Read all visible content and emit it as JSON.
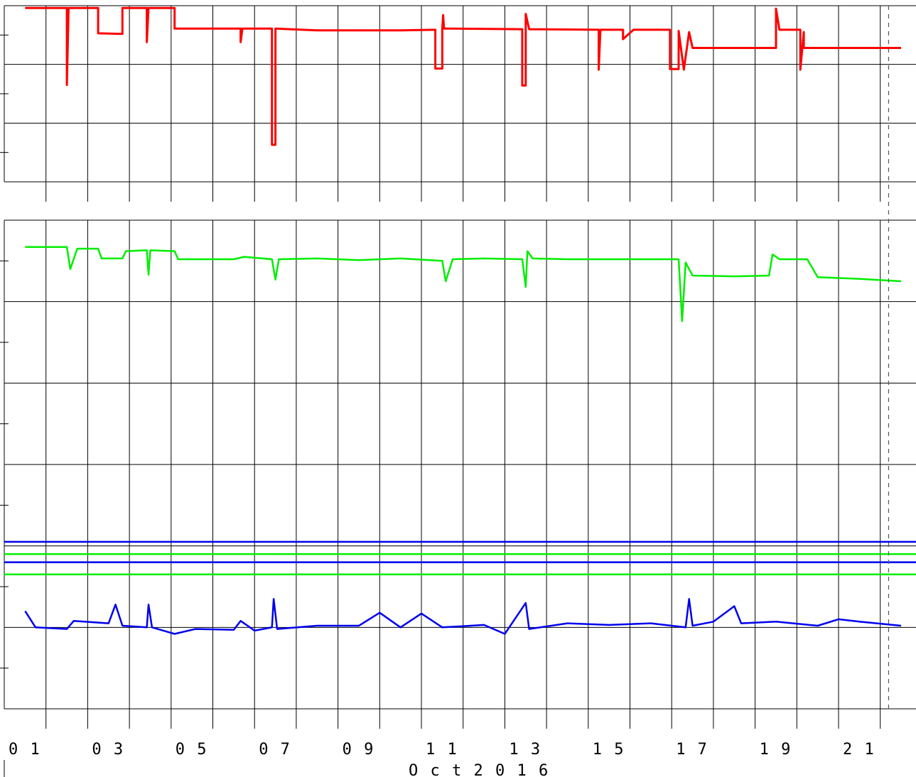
{
  "chart_data": [
    {
      "type": "line",
      "panel": "top",
      "x_range": [
        "2016-10-01",
        "2016-10-22"
      ],
      "y_range": [
        0,
        3
      ],
      "grid": true,
      "series": [
        {
          "color": "#ff0000",
          "points": [
            [
              "2016-10-01 12:00",
              2.96
            ],
            [
              "2016-10-02 12:00",
              2.96
            ],
            [
              "2016-10-02 12:00",
              1.65
            ],
            [
              "2016-10-02 13:00",
              2.96
            ],
            [
              "2016-10-03 06:00",
              2.96
            ],
            [
              "2016-10-03 06:00",
              2.53
            ],
            [
              "2016-10-03 20:00",
              2.52
            ],
            [
              "2016-10-03 20:00",
              2.96
            ],
            [
              "2016-10-04 10:00",
              2.96
            ],
            [
              "2016-10-04 10:00",
              2.38
            ],
            [
              "2016-10-04 11:00",
              2.96
            ],
            [
              "2016-10-05 02:00",
              2.96
            ],
            [
              "2016-10-05 02:00",
              2.61
            ],
            [
              "2016-10-06 16:00",
              2.61
            ],
            [
              "2016-10-06 16:00",
              2.38
            ],
            [
              "2016-10-06 17:00",
              2.61
            ],
            [
              "2016-10-07 10:00",
              2.61
            ],
            [
              "2016-10-07 10:00",
              0.63
            ],
            [
              "2016-10-07 12:00",
              0.63
            ],
            [
              "2016-10-07 12:00",
              2.61
            ],
            [
              "2016-10-08 12:00",
              2.58
            ],
            [
              "2016-10-09 12:00",
              2.58
            ],
            [
              "2016-10-10 12:00",
              2.58
            ],
            [
              "2016-10-11 08:00",
              2.59
            ],
            [
              "2016-10-11 08:00",
              1.93
            ],
            [
              "2016-10-11 12:00",
              1.93
            ],
            [
              "2016-10-11 12:00",
              2.61
            ],
            [
              "2016-10-11 12:30",
              2.84
            ],
            [
              "2016-10-11 13:00",
              2.61
            ],
            [
              "2016-10-13 10:00",
              2.6
            ],
            [
              "2016-10-13 10:00",
              1.64
            ],
            [
              "2016-10-13 12:00",
              1.64
            ],
            [
              "2016-10-13 12:00",
              2.86
            ],
            [
              "2016-10-13 14:00",
              2.6
            ],
            [
              "2016-10-15 06:00",
              2.59
            ],
            [
              "2016-10-15 06:00",
              1.91
            ],
            [
              "2016-10-15 07:00",
              2.59
            ],
            [
              "2016-10-15 20:00",
              2.59
            ],
            [
              "2016-10-15 20:00",
              2.43
            ],
            [
              "2016-10-16 02:00",
              2.59
            ],
            [
              "2016-10-16 23:00",
              2.59
            ],
            [
              "2016-10-16 23:00",
              1.92
            ],
            [
              "2016-10-17 04:00",
              1.92
            ],
            [
              "2016-10-17 04:00",
              2.57
            ],
            [
              "2016-10-17 07:00",
              1.91
            ],
            [
              "2016-10-17 10:00",
              2.55
            ],
            [
              "2016-10-17 12:00",
              2.28
            ],
            [
              "2016-10-18 12:00",
              2.28
            ],
            [
              "2016-10-19 12:00",
              2.28
            ],
            [
              "2016-10-19 12:00",
              2.95
            ],
            [
              "2016-10-19 14:00",
              2.59
            ],
            [
              "2016-10-20 02:00",
              2.59
            ],
            [
              "2016-10-20 02:00",
              1.91
            ],
            [
              "2016-10-20 04:00",
              2.55
            ],
            [
              "2016-10-20 04:00",
              2.28
            ],
            [
              "2016-10-21 12:00",
              2.28
            ],
            [
              "2016-10-22 12:00",
              2.28
            ]
          ]
        }
      ]
    },
    {
      "type": "line",
      "panel": "bottom",
      "x_range": [
        "2016-10-01",
        "2016-10-22"
      ],
      "y_range": [
        0,
        6
      ],
      "grid": true,
      "series": [
        {
          "color": "#00ee00",
          "points": [
            [
              "2016-10-01 12:00",
              5.67
            ],
            [
              "2016-10-02 12:00",
              5.67
            ],
            [
              "2016-10-02 14:00",
              5.4
            ],
            [
              "2016-10-02 18:00",
              5.65
            ],
            [
              "2016-10-03 06:00",
              5.65
            ],
            [
              "2016-10-03 08:00",
              5.53
            ],
            [
              "2016-10-03 20:00",
              5.53
            ],
            [
              "2016-10-03 22:00",
              5.62
            ],
            [
              "2016-10-04 10:00",
              5.63
            ],
            [
              "2016-10-04 11:00",
              5.33
            ],
            [
              "2016-10-04 12:00",
              5.63
            ],
            [
              "2016-10-05 02:00",
              5.62
            ],
            [
              "2016-10-05 04:00",
              5.52
            ],
            [
              "2016-10-06 12:00",
              5.52
            ],
            [
              "2016-10-06 18:00",
              5.55
            ],
            [
              "2016-10-07 10:00",
              5.52
            ],
            [
              "2016-10-07 12:00",
              5.27
            ],
            [
              "2016-10-07 14:00",
              5.52
            ],
            [
              "2016-10-08 12:00",
              5.53
            ],
            [
              "2016-10-09 12:00",
              5.51
            ],
            [
              "2016-10-10 12:00",
              5.53
            ],
            [
              "2016-10-11 12:00",
              5.5
            ],
            [
              "2016-10-11 14:00",
              5.25
            ],
            [
              "2016-10-11 18:00",
              5.52
            ],
            [
              "2016-10-12 12:00",
              5.53
            ],
            [
              "2016-10-13 10:00",
              5.52
            ],
            [
              "2016-10-13 12:00",
              5.18
            ],
            [
              "2016-10-13 13:00",
              5.62
            ],
            [
              "2016-10-13 16:00",
              5.53
            ],
            [
              "2016-10-14 12:00",
              5.52
            ],
            [
              "2016-10-15 12:00",
              5.52
            ],
            [
              "2016-10-16 12:00",
              5.52
            ],
            [
              "2016-10-17 04:00",
              5.52
            ],
            [
              "2016-10-17 06:00",
              4.76
            ],
            [
              "2016-10-17 08:00",
              5.48
            ],
            [
              "2016-10-17 12:00",
              5.32
            ],
            [
              "2016-10-18 12:00",
              5.31
            ],
            [
              "2016-10-19 08:00",
              5.32
            ],
            [
              "2016-10-19 10:00",
              5.58
            ],
            [
              "2016-10-19 14:00",
              5.52
            ],
            [
              "2016-10-20 06:00",
              5.52
            ],
            [
              "2016-10-20 12:00",
              5.3
            ],
            [
              "2016-10-21 12:00",
              5.28
            ],
            [
              "2016-10-22 12:00",
              5.25
            ]
          ]
        },
        {
          "color": "#0000ee",
          "points": [
            [
              "2016-10-01 12:00",
              1.2
            ],
            [
              "2016-10-01 18:00",
              1.0
            ],
            [
              "2016-10-02 12:00",
              0.98
            ],
            [
              "2016-10-02 16:00",
              1.08
            ],
            [
              "2016-10-03 12:00",
              1.05
            ],
            [
              "2016-10-03 16:00",
              1.28
            ],
            [
              "2016-10-03 20:00",
              1.02
            ],
            [
              "2016-10-04 10:00",
              1.0
            ],
            [
              "2016-10-04 11:00",
              1.28
            ],
            [
              "2016-10-04 13:00",
              1.0
            ],
            [
              "2016-10-05 02:00",
              0.92
            ],
            [
              "2016-10-05 14:00",
              0.98
            ],
            [
              "2016-10-06 12:00",
              0.97
            ],
            [
              "2016-10-06 16:00",
              1.08
            ],
            [
              "2016-10-07 00:00",
              0.96
            ],
            [
              "2016-10-07 10:00",
              1.0
            ],
            [
              "2016-10-07 11:00",
              1.35
            ],
            [
              "2016-10-07 13:00",
              0.98
            ],
            [
              "2016-10-08 12:00",
              1.02
            ],
            [
              "2016-10-09 12:00",
              1.02
            ],
            [
              "2016-10-10 00:00",
              1.18
            ],
            [
              "2016-10-10 12:00",
              1.0
            ],
            [
              "2016-10-11 00:00",
              1.17
            ],
            [
              "2016-10-11 12:00",
              1.0
            ],
            [
              "2016-10-12 12:00",
              1.03
            ],
            [
              "2016-10-13 00:00",
              0.92
            ],
            [
              "2016-10-13 12:00",
              1.3
            ],
            [
              "2016-10-13 14:00",
              0.98
            ],
            [
              "2016-10-14 12:00",
              1.05
            ],
            [
              "2016-10-15 12:00",
              1.03
            ],
            [
              "2016-10-16 12:00",
              1.05
            ],
            [
              "2016-10-17 08:00",
              1.0
            ],
            [
              "2016-10-17 10:00",
              1.35
            ],
            [
              "2016-10-17 12:00",
              1.02
            ],
            [
              "2016-10-18 00:00",
              1.07
            ],
            [
              "2016-10-18 12:00",
              1.26
            ],
            [
              "2016-10-18 16:00",
              1.05
            ],
            [
              "2016-10-19 12:00",
              1.07
            ],
            [
              "2016-10-20 12:00",
              1.02
            ],
            [
              "2016-10-21 00:00",
              1.1
            ],
            [
              "2016-10-21 12:00",
              1.07
            ],
            [
              "2016-10-22 12:00",
              1.02
            ]
          ]
        }
      ],
      "reference_lines": [
        {
          "color": "#0000ee",
          "y": 2.05
        },
        {
          "color": "#00ee00",
          "y": 1.9
        },
        {
          "color": "#0000ee",
          "y": 1.8
        },
        {
          "color": "#00ee00",
          "y": 1.65
        }
      ]
    }
  ],
  "x_axis": {
    "tick_labels": [
      "0 1",
      "0 3",
      "0 5",
      "0 7",
      "0 9",
      "1 1",
      "1 3",
      "1 5",
      "1 7",
      "1 9",
      "2 1"
    ],
    "month_label": "O c t  2 0 1 6"
  },
  "colors": {
    "grid": "#000000",
    "now_marker": "#555555"
  }
}
